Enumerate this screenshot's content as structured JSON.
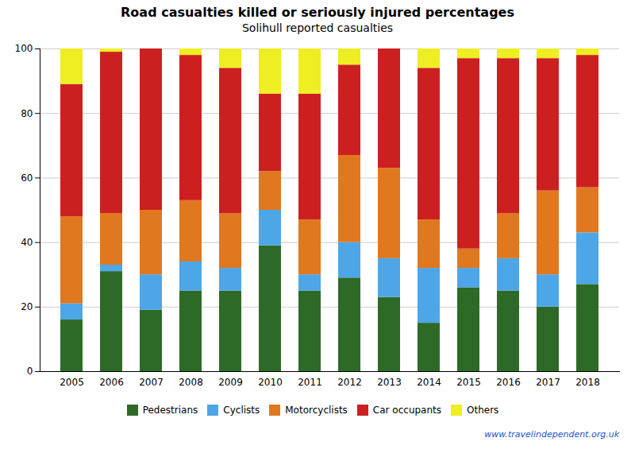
{
  "chart_data": {
    "type": "bar",
    "stacked": true,
    "title": "Road casualties killed or seriously injured percentages",
    "subtitle": "Solihull reported casualties",
    "categories": [
      "2005",
      "2006",
      "2007",
      "2008",
      "2009",
      "2010",
      "2011",
      "2012",
      "2013",
      "2014",
      "2015",
      "2016",
      "2017",
      "2018"
    ],
    "series": [
      {
        "name": "Pedestrians",
        "color": "#2d6a27",
        "values": [
          16,
          31,
          19,
          25,
          25,
          39,
          25,
          29,
          23,
          15,
          26,
          25,
          20,
          27
        ]
      },
      {
        "name": "Cyclists",
        "color": "#4da6e8",
        "values": [
          5,
          2,
          11,
          9,
          7,
          11,
          5,
          11,
          12,
          17,
          6,
          10,
          10,
          16
        ]
      },
      {
        "name": "Motorcyclists",
        "color": "#e07820",
        "values": [
          27,
          16,
          20,
          19,
          17,
          12,
          17,
          27,
          28,
          15,
          6,
          14,
          26,
          14
        ]
      },
      {
        "name": "Car occupants",
        "color": "#cc2020",
        "values": [
          41,
          50,
          50,
          45,
          45,
          24,
          39,
          28,
          37,
          47,
          59,
          48,
          41,
          41
        ]
      },
      {
        "name": "Others",
        "color": "#eeee22",
        "values": [
          11,
          1,
          0,
          2,
          6,
          14,
          14,
          5,
          0,
          6,
          3,
          3,
          3,
          2
        ]
      }
    ],
    "ylim": [
      0,
      100
    ],
    "yticks": [
      0,
      20,
      40,
      60,
      80,
      100
    ],
    "grid": true,
    "legend": "bottom",
    "annotation": "www.travelindependent.org.uk"
  }
}
